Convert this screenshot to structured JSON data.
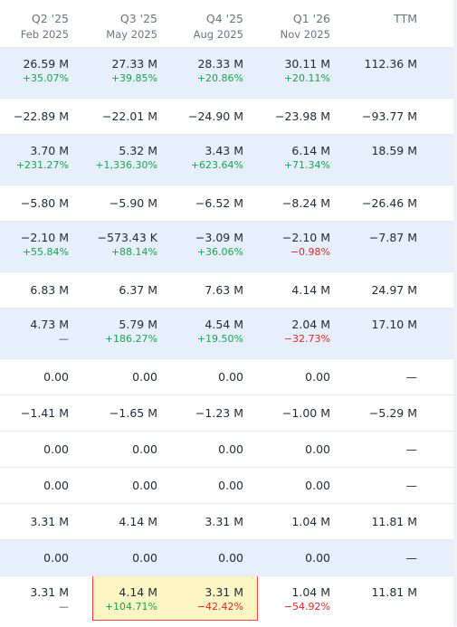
{
  "columns": [
    {
      "q": "Q2 '25",
      "d": "Feb 2025"
    },
    {
      "q": "Q3 '25",
      "d": "May 2025"
    },
    {
      "q": "Q4 '25",
      "d": "Aug 2025"
    },
    {
      "q": "Q1 '26",
      "d": "Nov 2025"
    },
    {
      "q": "TTM",
      "d": ""
    }
  ],
  "rows": [
    {
      "shaded": true,
      "values": [
        "26.59 M",
        "27.33 M",
        "28.33 M",
        "30.11 M",
        "112.36 M"
      ],
      "changes": [
        "+35.07%",
        "+39.85%",
        "+20.86%",
        "+20.11%",
        ""
      ]
    },
    {
      "shaded": false,
      "values": [
        "−22.89 M",
        "−22.01 M",
        "−24.90 M",
        "−23.98 M",
        "−93.77 M"
      ],
      "changes": []
    },
    {
      "shaded": true,
      "values": [
        "3.70 M",
        "5.32 M",
        "3.43 M",
        "6.14 M",
        "18.59 M"
      ],
      "changes": [
        "+231.27%",
        "+1,336.30%",
        "+623.64%",
        "+71.34%",
        ""
      ]
    },
    {
      "shaded": false,
      "values": [
        "−5.80 M",
        "−5.90 M",
        "−6.52 M",
        "−8.24 M",
        "−26.46 M"
      ],
      "changes": []
    },
    {
      "shaded": true,
      "values": [
        "−2.10 M",
        "−573.43 K",
        "−3.09 M",
        "−2.10 M",
        "−7.87 M"
      ],
      "changes": [
        "+55.84%",
        "+88.14%",
        "+36.06%",
        "−0.98%",
        ""
      ]
    },
    {
      "shaded": false,
      "values": [
        "6.83 M",
        "6.37 M",
        "7.63 M",
        "4.14 M",
        "24.97 M"
      ],
      "changes": []
    },
    {
      "shaded": true,
      "values": [
        "4.73 M",
        "5.79 M",
        "4.54 M",
        "2.04 M",
        "17.10 M"
      ],
      "changes": [
        "—",
        "+186.27%",
        "+19.50%",
        "−32.73%",
        ""
      ]
    },
    {
      "shaded": false,
      "values": [
        "0.00",
        "0.00",
        "0.00",
        "0.00",
        "—"
      ],
      "changes": []
    },
    {
      "shaded": false,
      "values": [
        "−1.41 M",
        "−1.65 M",
        "−1.23 M",
        "−1.00 M",
        "−5.29 M"
      ],
      "changes": []
    },
    {
      "shaded": false,
      "values": [
        "0.00",
        "0.00",
        "0.00",
        "0.00",
        "—"
      ],
      "changes": []
    },
    {
      "shaded": false,
      "values": [
        "0.00",
        "0.00",
        "0.00",
        "0.00",
        "—"
      ],
      "changes": []
    },
    {
      "shaded": false,
      "values": [
        "3.31 M",
        "4.14 M",
        "3.31 M",
        "1.04 M",
        "11.81 M"
      ],
      "changes": []
    },
    {
      "shaded": true,
      "values": [
        "0.00",
        "0.00",
        "0.00",
        "0.00",
        "—"
      ],
      "changes": []
    },
    {
      "shaded": false,
      "values": [
        "3.31 M",
        "4.14 M",
        "3.31 M",
        "1.04 M",
        "11.81 M"
      ],
      "changes": [
        "—",
        "+104.71%",
        "−42.42%",
        "−54.92%",
        ""
      ]
    }
  ],
  "colors": {
    "positive": "#16a34a",
    "negative": "#dc2626",
    "shade": "#e6effb",
    "highlight_border": "#ef4444",
    "highlight_fill": "#fcf6c4"
  }
}
